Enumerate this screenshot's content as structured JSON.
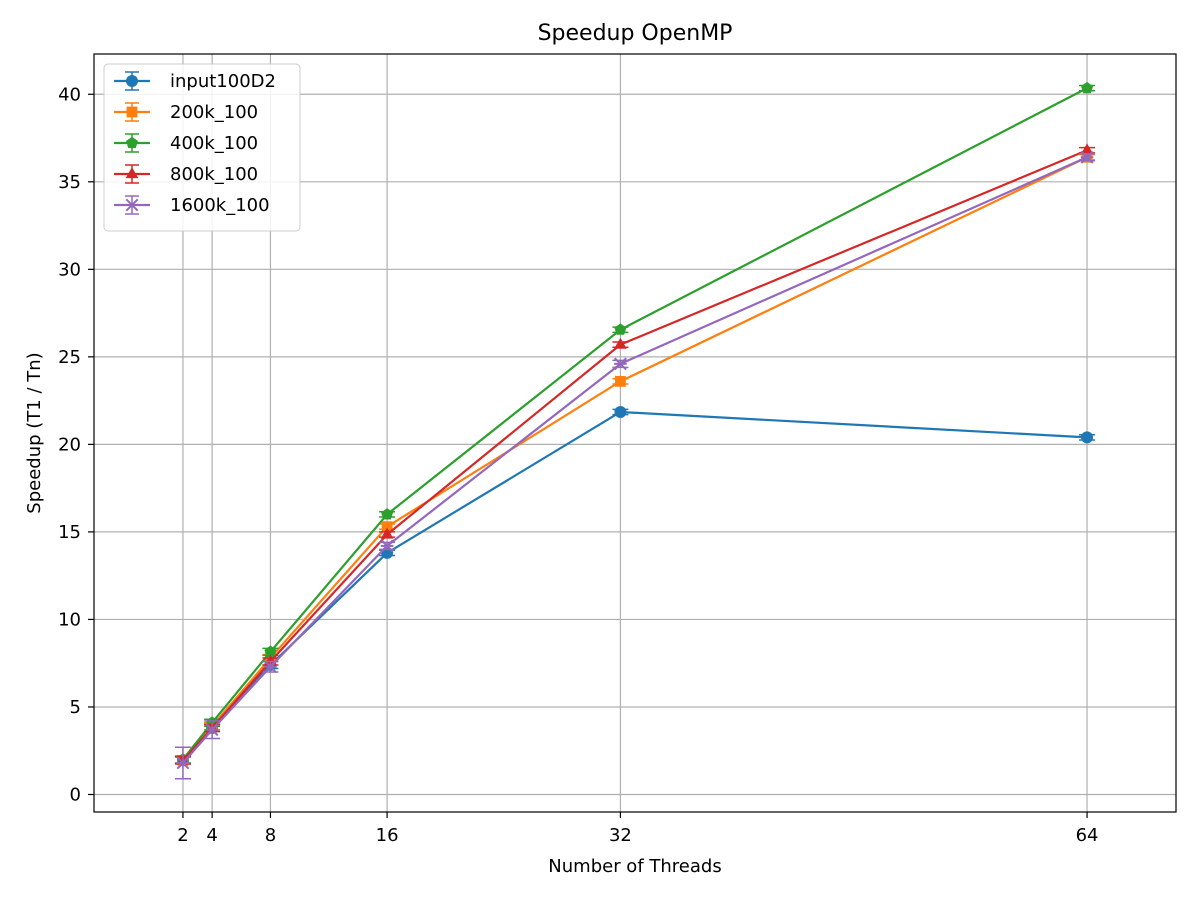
{
  "chart_data": {
    "type": "line",
    "title": "Speedup OpenMP",
    "xlabel": "Number of Threads",
    "ylabel": "Speedup (T1 / Tn)",
    "x": [
      2,
      4,
      8,
      16,
      32,
      64
    ],
    "xticks": [
      2,
      4,
      8,
      16,
      32,
      64
    ],
    "yticks": [
      0,
      5,
      10,
      15,
      20,
      25,
      30,
      35,
      40
    ],
    "xlim": [
      -4.1,
      70.1
    ],
    "ylim": [
      -1.0,
      42.3
    ],
    "grid": true,
    "legend_position": "top-left",
    "error_bars": true,
    "series": [
      {
        "name": "input100D2",
        "color": "#1f77b4",
        "marker": "circle",
        "values": [
          1.95,
          3.8,
          7.4,
          13.8,
          21.85,
          20.4
        ],
        "errors": [
          0.2,
          0.2,
          0.2,
          0.15,
          0.15,
          0.15
        ]
      },
      {
        "name": "200k_100",
        "color": "#ff7f0e",
        "marker": "square",
        "values": [
          1.95,
          3.9,
          7.8,
          15.3,
          23.6,
          36.4
        ],
        "errors": [
          0.2,
          0.2,
          0.2,
          0.15,
          0.15,
          0.15
        ]
      },
      {
        "name": "400k_100",
        "color": "#2ca02c",
        "marker": "pentagon",
        "values": [
          2.0,
          4.1,
          8.15,
          16.0,
          26.55,
          40.35
        ],
        "errors": [
          0.2,
          0.2,
          0.2,
          0.15,
          0.15,
          0.15
        ]
      },
      {
        "name": "800k_100",
        "color": "#d62728",
        "marker": "triangle",
        "values": [
          1.95,
          3.8,
          7.6,
          14.85,
          25.7,
          36.8
        ],
        "errors": [
          0.2,
          0.2,
          0.2,
          0.15,
          0.15,
          0.15
        ]
      },
      {
        "name": "1600k_100",
        "color": "#9467bd",
        "marker": "x",
        "values": [
          1.8,
          3.7,
          7.3,
          14.2,
          24.6,
          36.4
        ],
        "errors": [
          0.9,
          0.5,
          0.3,
          0.2,
          0.2,
          0.2
        ]
      }
    ]
  }
}
